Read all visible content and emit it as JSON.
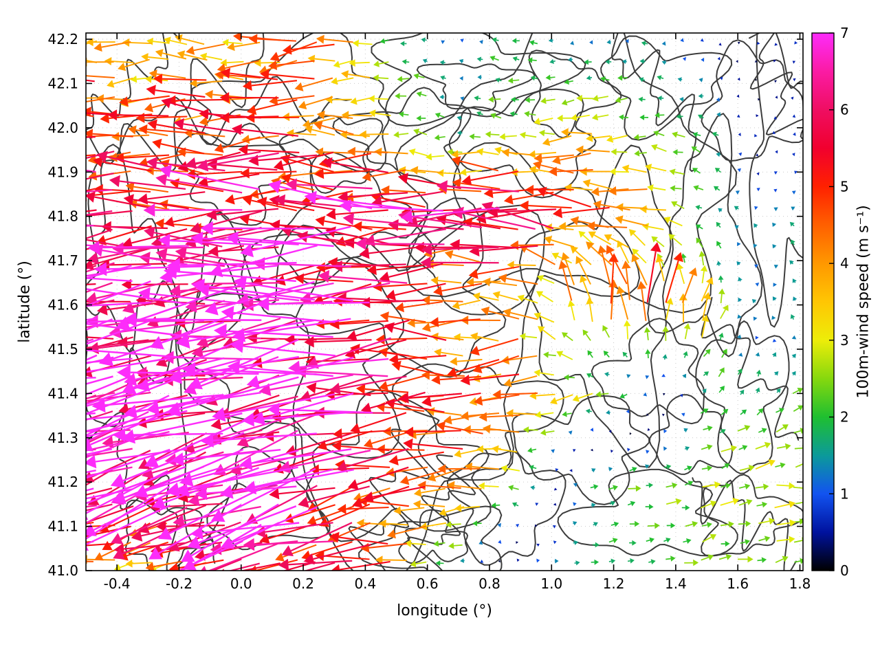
{
  "chart_data": {
    "type": "scatter",
    "subtype": "quiver_wind_vector_field_with_terrain_contours",
    "title": "",
    "xlabel": "longitude (°)",
    "ylabel": "latitude (°)",
    "xlim": [
      -0.5,
      1.81
    ],
    "ylim": [
      41.0,
      42.214
    ],
    "xticks": [
      -0.4,
      -0.2,
      0.0,
      0.2,
      0.4,
      0.6,
      0.8,
      1.0,
      1.2,
      1.4,
      1.6,
      1.8
    ],
    "xtick_labels": [
      "-0.4",
      "-0.2",
      "0.0",
      "0.2",
      "0.4",
      "0.6",
      "0.8",
      "1.0",
      "1.2",
      "1.4",
      "1.6",
      "1.8"
    ],
    "yticks": [
      41.0,
      41.1,
      41.2,
      41.3,
      41.4,
      41.5,
      41.6,
      41.7,
      41.8,
      41.9,
      42.0,
      42.1,
      42.2
    ],
    "ytick_labels": [
      "41.0",
      "41.1",
      "41.2",
      "41.3",
      "41.4",
      "41.5",
      "41.6",
      "41.7",
      "41.8",
      "41.9",
      "42.0",
      "42.1",
      "42.2"
    ],
    "grid": "dotted",
    "legend": "none",
    "colorbar": {
      "label": "100m-wind speed (m s⁻¹)",
      "range": [
        0,
        7
      ],
      "ticks": [
        0,
        1,
        2,
        3,
        4,
        5,
        6,
        7
      ],
      "tick_labels": [
        "0",
        "1",
        "2",
        "3",
        "4",
        "5",
        "6",
        "7"
      ],
      "stops": [
        {
          "v": 0.0,
          "color": "#000000"
        },
        {
          "v": 0.5,
          "color": "#00129e"
        },
        {
          "v": 1.0,
          "color": "#1253f0"
        },
        {
          "v": 1.5,
          "color": "#0c9a9a"
        },
        {
          "v": 2.0,
          "color": "#1fbf30"
        },
        {
          "v": 2.5,
          "color": "#86d80e"
        },
        {
          "v": 3.0,
          "color": "#eded09"
        },
        {
          "v": 3.5,
          "color": "#ffc603"
        },
        {
          "v": 4.0,
          "color": "#ff9800"
        },
        {
          "v": 4.5,
          "color": "#ff6000"
        },
        {
          "v": 5.0,
          "color": "#ff2100"
        },
        {
          "v": 5.5,
          "color": "#f1002e"
        },
        {
          "v": 6.0,
          "color": "#ef0e62"
        },
        {
          "v": 6.5,
          "color": "#fb1ba4"
        },
        {
          "v": 7.0,
          "color": "#fd2cfa"
        }
      ]
    },
    "field": {
      "convention": "direction_deg is the direction arrows point toward: 0=east, 90=north, 180=west",
      "units": "m s-1",
      "lons": [
        -0.5,
        -0.3,
        -0.1,
        0.1,
        0.3,
        0.5,
        0.7,
        0.9,
        1.1,
        1.3,
        1.5,
        1.65,
        1.8
      ],
      "lats": [
        41.0,
        41.2,
        41.4,
        41.6,
        41.8,
        42.0,
        42.2
      ],
      "speed": [
        [
          4.0,
          3.0,
          4.8,
          6.0,
          5.0,
          4.5,
          1.5,
          1.0,
          1.6,
          2.0,
          2.3,
          2.6,
          2.4
        ],
        [
          6.5,
          6.8,
          7.0,
          6.8,
          6.5,
          5.0,
          4.5,
          2.5,
          1.8,
          2.3,
          2.6,
          2.9,
          3.0
        ],
        [
          7.0,
          7.0,
          7.0,
          6.8,
          6.5,
          6.0,
          5.0,
          4.5,
          3.0,
          1.2,
          2.0,
          1.9,
          2.1
        ],
        [
          7.0,
          7.0,
          6.8,
          7.0,
          6.8,
          5.5,
          4.0,
          4.2,
          4.5,
          5.0,
          3.5,
          1.3,
          1.8
        ],
        [
          6.5,
          5.5,
          5.2,
          6.5,
          6.0,
          6.5,
          6.0,
          6.5,
          4.5,
          4.5,
          2.0,
          1.3,
          1.5
        ],
        [
          5.0,
          4.5,
          5.0,
          4.8,
          4.2,
          3.0,
          1.6,
          2.5,
          3.5,
          2.5,
          2.0,
          0.7,
          0.8
        ],
        [
          4.5,
          3.2,
          3.5,
          4.0,
          4.5,
          2.0,
          1.2,
          2.0,
          1.0,
          1.5,
          0.9,
          0.6,
          0.8
        ]
      ],
      "direction_deg": [
        [
          185,
          190,
          185,
          190,
          185,
          185,
          200,
          10,
          10,
          10,
          15,
          10,
          10
        ],
        [
          195,
          200,
          200,
          200,
          195,
          190,
          185,
          170,
          20,
          10,
          15,
          10,
          5
        ],
        [
          190,
          195,
          190,
          195,
          190,
          185,
          182,
          190,
          185,
          200,
          40,
          60,
          30
        ],
        [
          185,
          188,
          185,
          190,
          185,
          182,
          180,
          178,
          95,
          90,
          70,
          150,
          120
        ],
        [
          185,
          182,
          180,
          183,
          178,
          182,
          180,
          178,
          175,
          170,
          150,
          140,
          130
        ],
        [
          180,
          182,
          178,
          185,
          180,
          175,
          170,
          175,
          185,
          180,
          160,
          250,
          200
        ],
        [
          180,
          185,
          180,
          185,
          190,
          180,
          150,
          170,
          200,
          160,
          220,
          90,
          120
        ]
      ],
      "fine_grid": {
        "nx": 39,
        "ny": 29
      },
      "jitter": {
        "speed_frac": 0.2,
        "dir_deg": 15,
        "seed": 20240731
      }
    },
    "contours": {
      "color": "#3c3c3c",
      "width": 2,
      "loops": [
        [
          0.72,
          42.12,
          0.28,
          0.1,
          1
        ],
        [
          0.75,
          42.1,
          0.14,
          0.05,
          2
        ],
        [
          0.55,
          41.98,
          0.18,
          0.09,
          3
        ],
        [
          0.92,
          41.97,
          0.22,
          0.1,
          4
        ],
        [
          1.05,
          42.08,
          0.12,
          0.08,
          5
        ],
        [
          0.3,
          41.95,
          0.13,
          0.08,
          6
        ],
        [
          -0.02,
          41.9,
          0.16,
          0.1,
          7
        ],
        [
          0.35,
          41.78,
          0.22,
          0.12,
          8
        ],
        [
          0.55,
          41.63,
          0.28,
          0.16,
          9
        ],
        [
          0.2,
          41.5,
          0.32,
          0.22,
          10
        ],
        [
          0.9,
          41.75,
          0.32,
          0.16,
          11
        ],
        [
          1.18,
          41.6,
          0.22,
          0.28,
          12
        ],
        [
          1.33,
          41.44,
          0.16,
          0.1,
          13
        ],
        [
          0.75,
          41.35,
          0.22,
          0.12,
          14
        ],
        [
          0.5,
          41.22,
          0.28,
          0.14,
          15
        ],
        [
          0.85,
          41.15,
          0.16,
          0.12,
          16
        ],
        [
          1.1,
          41.28,
          0.2,
          0.1,
          17
        ],
        [
          1.5,
          41.72,
          0.14,
          0.22,
          18
        ],
        [
          1.62,
          41.4,
          0.12,
          0.16,
          19
        ],
        [
          0.08,
          41.15,
          0.16,
          0.1,
          20
        ],
        [
          -0.25,
          41.08,
          0.13,
          0.07,
          21
        ],
        [
          1.32,
          41.12,
          0.24,
          0.09,
          22
        ],
        [
          -0.02,
          41.42,
          0.2,
          0.3,
          23
        ],
        [
          -0.38,
          41.62,
          0.14,
          0.26,
          24
        ],
        [
          1.74,
          41.9,
          0.1,
          0.28,
          25
        ],
        [
          0.65,
          41.05,
          0.2,
          0.08,
          26
        ],
        [
          1.05,
          41.9,
          0.5,
          0.3,
          27
        ],
        [
          0.45,
          41.45,
          0.5,
          0.35,
          28
        ],
        [
          1.65,
          42.05,
          0.15,
          0.12,
          29
        ],
        [
          0.2,
          42.05,
          0.3,
          0.12,
          30
        ],
        [
          1.35,
          42.1,
          0.18,
          0.09,
          41
        ],
        [
          1.62,
          41.12,
          0.14,
          0.08,
          42
        ],
        [
          1.45,
          41.3,
          0.12,
          0.08,
          43
        ],
        [
          0.62,
          41.07,
          0.1,
          0.05,
          45
        ]
      ],
      "lines": [
        [
          -0.5,
          41.85,
          0.1,
          42.2,
          31
        ],
        [
          -0.5,
          41.35,
          -0.1,
          41.0,
          32
        ],
        [
          0.4,
          41.0,
          0.55,
          41.3,
          33
        ],
        [
          0.6,
          41.0,
          0.7,
          41.25,
          34
        ],
        [
          1.8,
          41.3,
          1.5,
          41.6,
          35
        ],
        [
          1.2,
          42.2,
          1.5,
          41.95,
          36
        ],
        [
          -0.5,
          42.0,
          -0.2,
          42.2,
          37
        ],
        [
          1.8,
          41.05,
          1.45,
          41.2,
          38
        ],
        [
          -0.5,
          41.55,
          0.0,
          41.65,
          39
        ],
        [
          1.65,
          42.21,
          1.8,
          41.95,
          40
        ],
        [
          -0.5,
          41.98,
          0.35,
          42.08,
          44
        ]
      ]
    }
  },
  "colors": {
    "background": "#ffffff",
    "axis": "#000000",
    "grid": "#c9c9c9",
    "contour": "#3c3c3c"
  }
}
